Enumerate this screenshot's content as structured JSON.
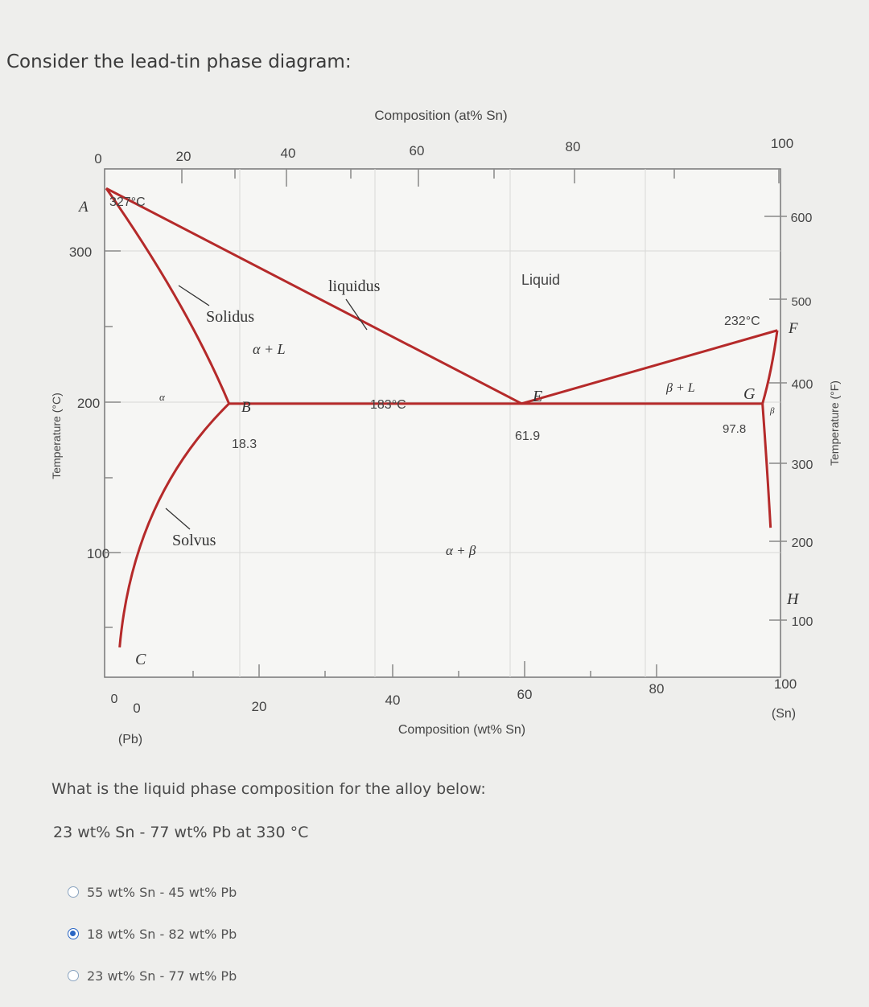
{
  "prompt": "Consider the lead-tin phase diagram:",
  "chart_data": {
    "type": "phase-diagram",
    "top_axis_label": "Composition (at% Sn)",
    "top_ticks": [
      "0",
      "20",
      "40",
      "60",
      "80",
      "100"
    ],
    "bottom_axis_label": "Composition (wt% Sn)",
    "bottom_ticks": [
      "0",
      "20",
      "40",
      "60",
      "80",
      "100"
    ],
    "bottom_end_labels": {
      "left": "(Pb)",
      "right": "(Sn)"
    },
    "left_axis_label": "Temperature (°C)",
    "left_ticks": [
      "0",
      "100",
      "200",
      "300"
    ],
    "right_axis_label": "Temperature (°F)",
    "right_ticks": [
      "100",
      "200",
      "300",
      "400",
      "500",
      "600"
    ],
    "xlim_wt": [
      0,
      100
    ],
    "ylim_C": [
      0,
      340
    ],
    "points": {
      "A": {
        "label": "A",
        "x": 0,
        "y": 327,
        "note": "327°C"
      },
      "B": {
        "label": "B",
        "x": 18.3,
        "y": 183,
        "note": "18.3"
      },
      "E": {
        "label": "E",
        "x": 61.9,
        "y": 183,
        "note": "61.9"
      },
      "G": {
        "label": "G",
        "x": 97.8,
        "y": 183,
        "note": "97.8"
      },
      "F": {
        "label": "F",
        "x": 100,
        "y": 232,
        "note": "232°C"
      },
      "C": {
        "label": "C"
      },
      "H": {
        "label": "H"
      }
    },
    "eutectic_label": "183°C",
    "region_labels": [
      "Liquid",
      "α + L",
      "α + β",
      "β + L",
      "α",
      "β"
    ],
    "line_labels": [
      "liquidus",
      "Solidus",
      "Solvus"
    ],
    "liquidus_left": [
      [
        0,
        327
      ],
      [
        61.9,
        183
      ]
    ],
    "liquidus_right": [
      [
        61.9,
        183
      ],
      [
        100,
        232
      ]
    ],
    "solidus_left": [
      [
        0,
        327
      ],
      [
        18.3,
        183
      ]
    ],
    "eutectic_line": [
      [
        18.3,
        183
      ],
      [
        97.8,
        183
      ]
    ],
    "solvus_left": [
      [
        18.3,
        183
      ],
      [
        2,
        20
      ]
    ],
    "solvus_right": [
      [
        97.8,
        183
      ],
      [
        99,
        100
      ]
    ],
    "line_color": "#b52a2a"
  },
  "question": "What is the liquid phase composition for the alloy below:",
  "alloy": "23 wt% Sn - 77 wt% Pb at 330 °C",
  "options": [
    {
      "label": "55 wt% Sn - 45 wt% Pb",
      "selected": false
    },
    {
      "label": "18 wt% Sn - 82 wt% Pb",
      "selected": true
    },
    {
      "label": "23 wt% Sn - 77 wt% Pb",
      "selected": false
    }
  ]
}
